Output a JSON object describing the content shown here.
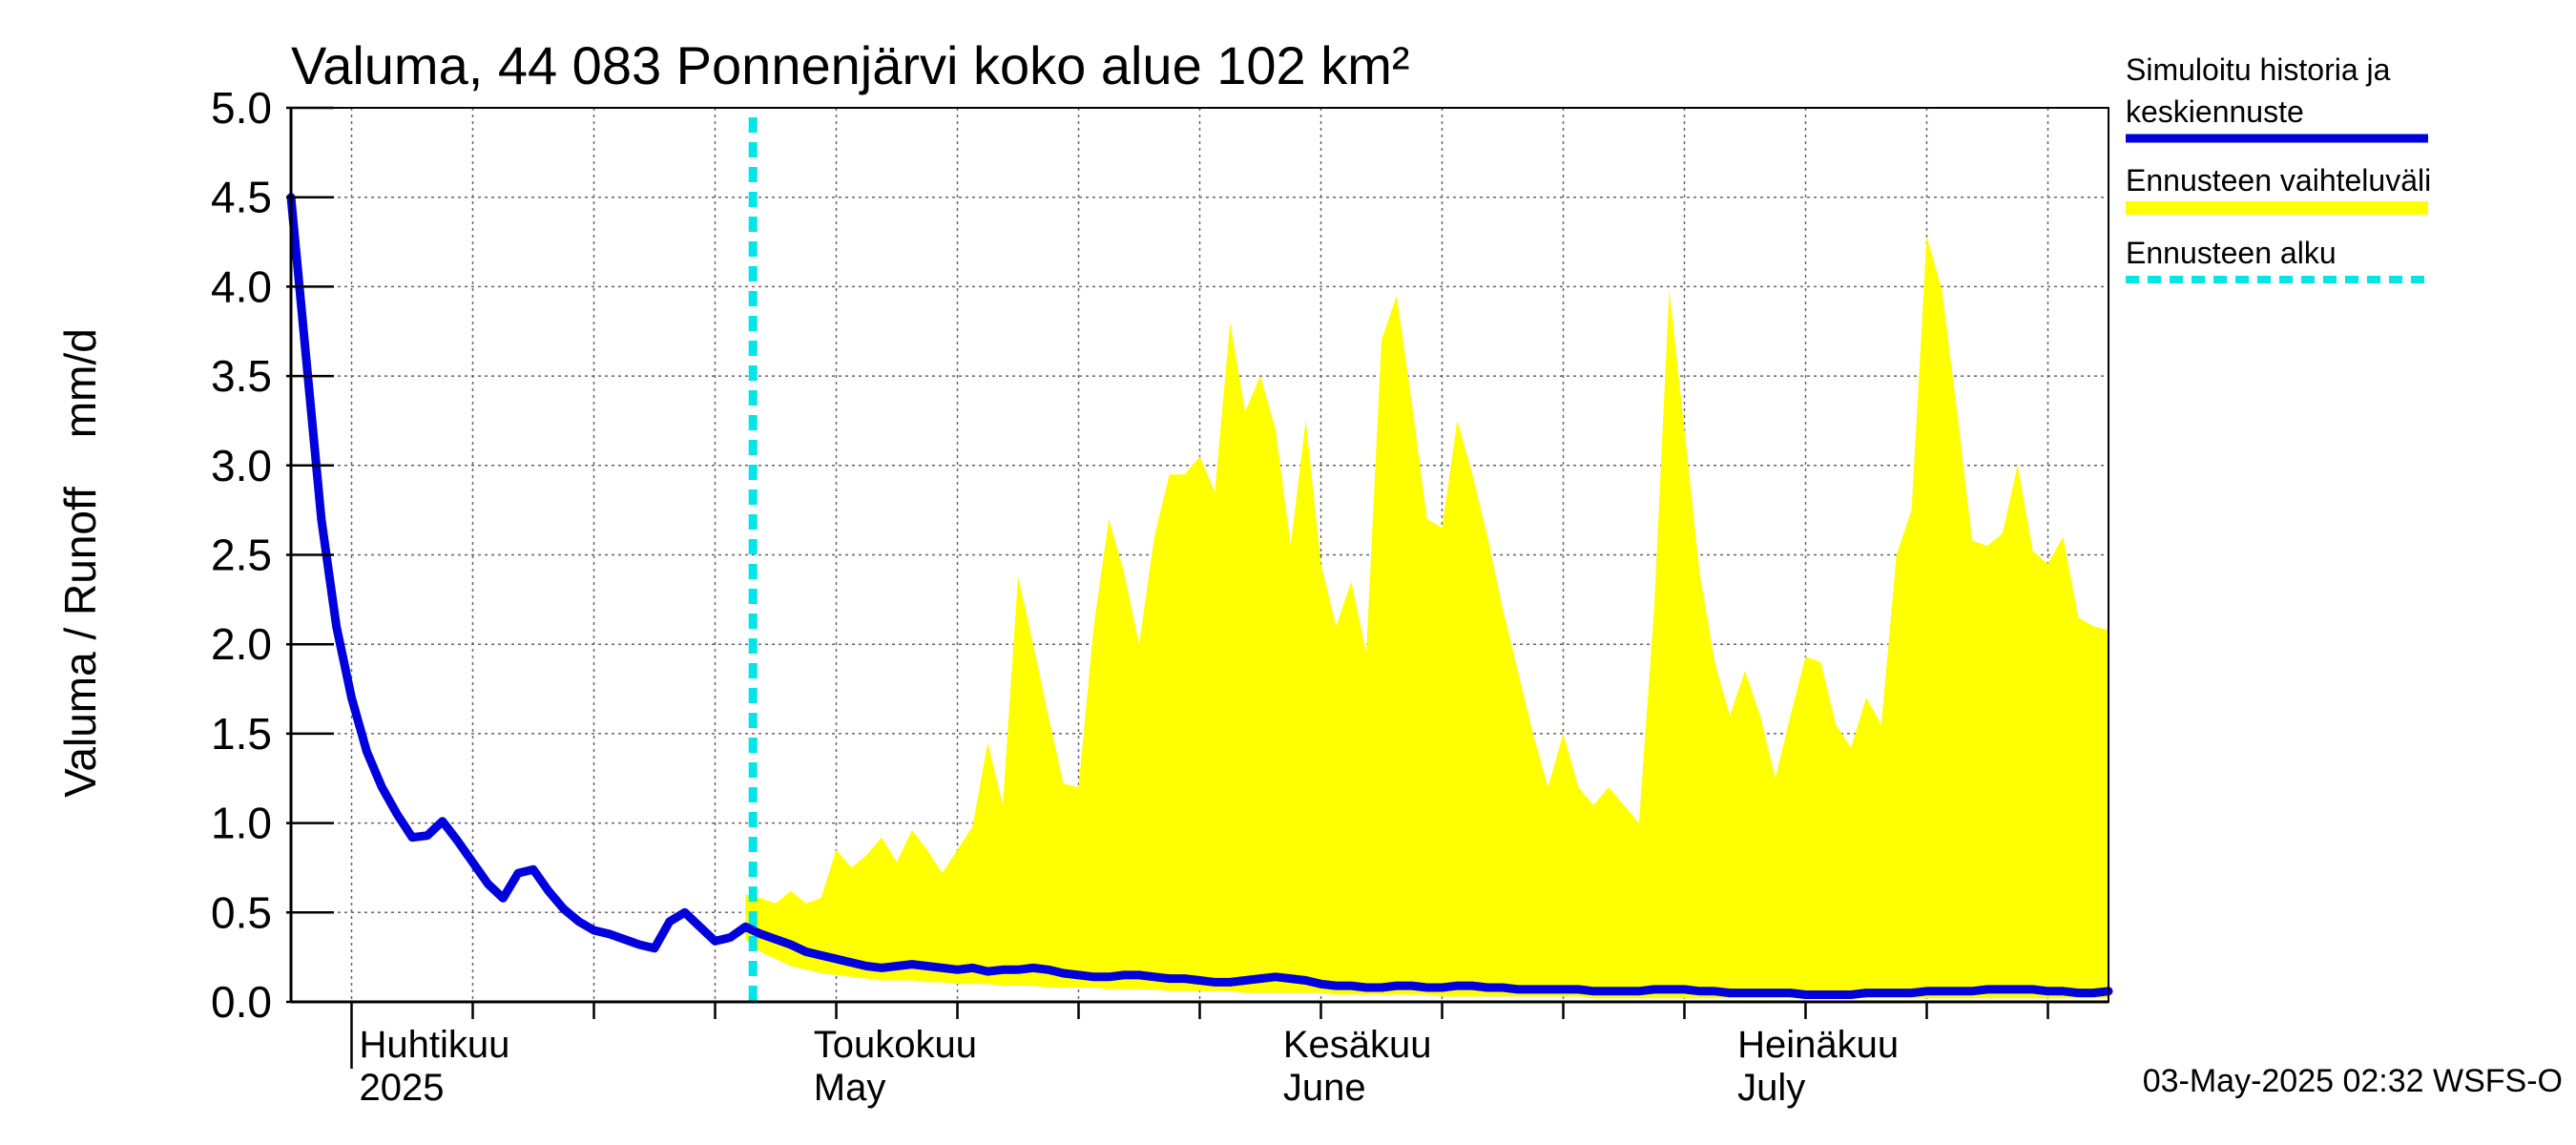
{
  "chart_data": {
    "type": "area",
    "title": "Valuma, 44 083 Ponnenjärvi koko alue 102 km²",
    "ylabel": "Valuma / Runoff    mm/d",
    "xlabel": "",
    "ylim": [
      0,
      5.0
    ],
    "yticks": [
      "0.0",
      "0.5",
      "1.0",
      "1.5",
      "2.0",
      "2.5",
      "3.0",
      "3.5",
      "4.0",
      "4.5",
      "5.0"
    ],
    "x_start_date": "2025-03-28",
    "x_days": 120,
    "forecast_start_day": 30.5,
    "month_labels": [
      {
        "day": 4,
        "fi": "Huhtikuu",
        "en": "2025"
      },
      {
        "day": 34,
        "fi": "Toukokuu",
        "en": "May"
      },
      {
        "day": 65,
        "fi": "Kesäkuu",
        "en": "June"
      },
      {
        "day": 95,
        "fi": "Heinäkuu",
        "en": "July"
      }
    ],
    "series": [
      {
        "name": "Simuloitu historia ja keskiennuste",
        "color": "#0000dd",
        "x": [
          0,
          1,
          2,
          3,
          4,
          5,
          6,
          7,
          8,
          9,
          10,
          11,
          12,
          13,
          14,
          15,
          16,
          17,
          18,
          19,
          20,
          21,
          22,
          23,
          24,
          25,
          26,
          27,
          28,
          29,
          30,
          31,
          32,
          33,
          34,
          35,
          36,
          37,
          38,
          39,
          40,
          41,
          42,
          43,
          44,
          45,
          46,
          47,
          48,
          49,
          50,
          51,
          52,
          53,
          54,
          55,
          56,
          57,
          58,
          59,
          60,
          61,
          62,
          63,
          64,
          65,
          66,
          67,
          68,
          69,
          70,
          71,
          72,
          73,
          74,
          75,
          76,
          77,
          78,
          79,
          80,
          81,
          82,
          83,
          84,
          85,
          86,
          87,
          88,
          89,
          90,
          91,
          92,
          93,
          94,
          95,
          96,
          97,
          98,
          99,
          100,
          101,
          102,
          103,
          104,
          105,
          106,
          107,
          108,
          109,
          110,
          111,
          112,
          113,
          114,
          115,
          116,
          117,
          118,
          119,
          120
        ],
        "values": [
          4.5,
          3.6,
          2.7,
          2.1,
          1.7,
          1.4,
          1.2,
          1.05,
          0.92,
          0.93,
          1.01,
          0.9,
          0.78,
          0.66,
          0.58,
          0.72,
          0.74,
          0.62,
          0.52,
          0.45,
          0.4,
          0.38,
          0.35,
          0.32,
          0.3,
          0.45,
          0.5,
          0.42,
          0.34,
          0.36,
          0.42,
          0.38,
          0.35,
          0.32,
          0.28,
          0.26,
          0.24,
          0.22,
          0.2,
          0.19,
          0.2,
          0.21,
          0.2,
          0.19,
          0.18,
          0.19,
          0.17,
          0.18,
          0.18,
          0.19,
          0.18,
          0.16,
          0.15,
          0.14,
          0.14,
          0.15,
          0.15,
          0.14,
          0.13,
          0.13,
          0.12,
          0.11,
          0.11,
          0.12,
          0.13,
          0.14,
          0.13,
          0.12,
          0.1,
          0.09,
          0.09,
          0.08,
          0.08,
          0.09,
          0.09,
          0.08,
          0.08,
          0.09,
          0.09,
          0.08,
          0.08,
          0.07,
          0.07,
          0.07,
          0.07,
          0.07,
          0.06,
          0.06,
          0.06,
          0.06,
          0.07,
          0.07,
          0.07,
          0.06,
          0.06,
          0.05,
          0.05,
          0.05,
          0.05,
          0.05,
          0.04,
          0.04,
          0.04,
          0.04,
          0.05,
          0.05,
          0.05,
          0.05,
          0.06,
          0.06,
          0.06,
          0.06,
          0.07,
          0.07,
          0.07,
          0.07,
          0.06,
          0.06,
          0.05,
          0.05,
          0.06
        ]
      },
      {
        "name": "Ennusteen vaihteluväli",
        "color": "#ffff00",
        "x": [
          30,
          31,
          32,
          33,
          34,
          35,
          36,
          37,
          38,
          39,
          40,
          41,
          42,
          43,
          44,
          45,
          46,
          47,
          48,
          49,
          50,
          51,
          52,
          53,
          54,
          55,
          56,
          57,
          58,
          59,
          60,
          61,
          62,
          63,
          64,
          65,
          66,
          67,
          68,
          69,
          70,
          71,
          72,
          73,
          74,
          75,
          76,
          77,
          78,
          79,
          80,
          81,
          82,
          83,
          84,
          85,
          86,
          87,
          88,
          89,
          90,
          91,
          92,
          93,
          94,
          95,
          96,
          97,
          98,
          99,
          100,
          101,
          102,
          103,
          104,
          105,
          106,
          107,
          108,
          109,
          110,
          111,
          112,
          113,
          114,
          115,
          116,
          117,
          118,
          119,
          120
        ],
        "upper": [
          0.6,
          0.58,
          0.55,
          0.62,
          0.55,
          0.58,
          0.85,
          0.75,
          0.82,
          0.92,
          0.78,
          0.96,
          0.85,
          0.72,
          0.85,
          0.98,
          1.45,
          1.1,
          2.38,
          2.0,
          1.6,
          1.22,
          1.2,
          2.1,
          2.7,
          2.4,
          2.0,
          2.6,
          2.95,
          2.95,
          3.05,
          2.85,
          3.8,
          3.3,
          3.5,
          3.2,
          2.55,
          3.25,
          2.45,
          2.1,
          2.35,
          1.95,
          3.7,
          3.95,
          3.35,
          2.7,
          2.65,
          3.25,
          2.95,
          2.6,
          2.2,
          1.85,
          1.5,
          1.2,
          1.5,
          1.2,
          1.1,
          1.2,
          1.1,
          1.0,
          2.2,
          3.98,
          3.2,
          2.4,
          1.9,
          1.6,
          1.85,
          1.6,
          1.25,
          1.6,
          1.93,
          1.9,
          1.55,
          1.42,
          1.7,
          1.55,
          2.5,
          2.75,
          4.28,
          3.98,
          3.3,
          2.58,
          2.55,
          2.62,
          3.0,
          2.52,
          2.45,
          2.6,
          2.15,
          2.1,
          2.08
        ],
        "lower": [
          0.35,
          0.28,
          0.24,
          0.2,
          0.18,
          0.16,
          0.15,
          0.14,
          0.13,
          0.12,
          0.12,
          0.12,
          0.11,
          0.11,
          0.1,
          0.1,
          0.1,
          0.09,
          0.09,
          0.09,
          0.08,
          0.08,
          0.08,
          0.08,
          0.07,
          0.07,
          0.07,
          0.07,
          0.06,
          0.06,
          0.06,
          0.06,
          0.06,
          0.05,
          0.05,
          0.05,
          0.05,
          0.05,
          0.05,
          0.04,
          0.04,
          0.04,
          0.04,
          0.04,
          0.04,
          0.04,
          0.03,
          0.03,
          0.03,
          0.03,
          0.03,
          0.03,
          0.03,
          0.03,
          0.03,
          0.03,
          0.02,
          0.02,
          0.02,
          0.02,
          0.02,
          0.02,
          0.02,
          0.02,
          0.02,
          0.02,
          0.02,
          0.02,
          0.02,
          0.02,
          0.02,
          0.02,
          0.02,
          0.02,
          0.02,
          0.02,
          0.02,
          0.02,
          0.02,
          0.02,
          0.02,
          0.02,
          0.02,
          0.02,
          0.02,
          0.02,
          0.02,
          0.02,
          0.02,
          0.02,
          0.02
        ]
      },
      {
        "name": "Ennusteen alku",
        "color": "#00e5e5"
      }
    ],
    "legend": [
      {
        "label_line1": "Simuloitu historia ja",
        "label_line2": "keskiennuste",
        "color": "#0000dd",
        "style": "solid"
      },
      {
        "label_line1": "Ennusteen vaihteluväli",
        "color": "#ffff00",
        "style": "solid"
      },
      {
        "label_line1": "Ennusteen alku",
        "color": "#00e5e5",
        "style": "dashed"
      }
    ],
    "legend_position": "right",
    "grid": true,
    "footer": "03-May-2025 02:32 WSFS-O"
  }
}
